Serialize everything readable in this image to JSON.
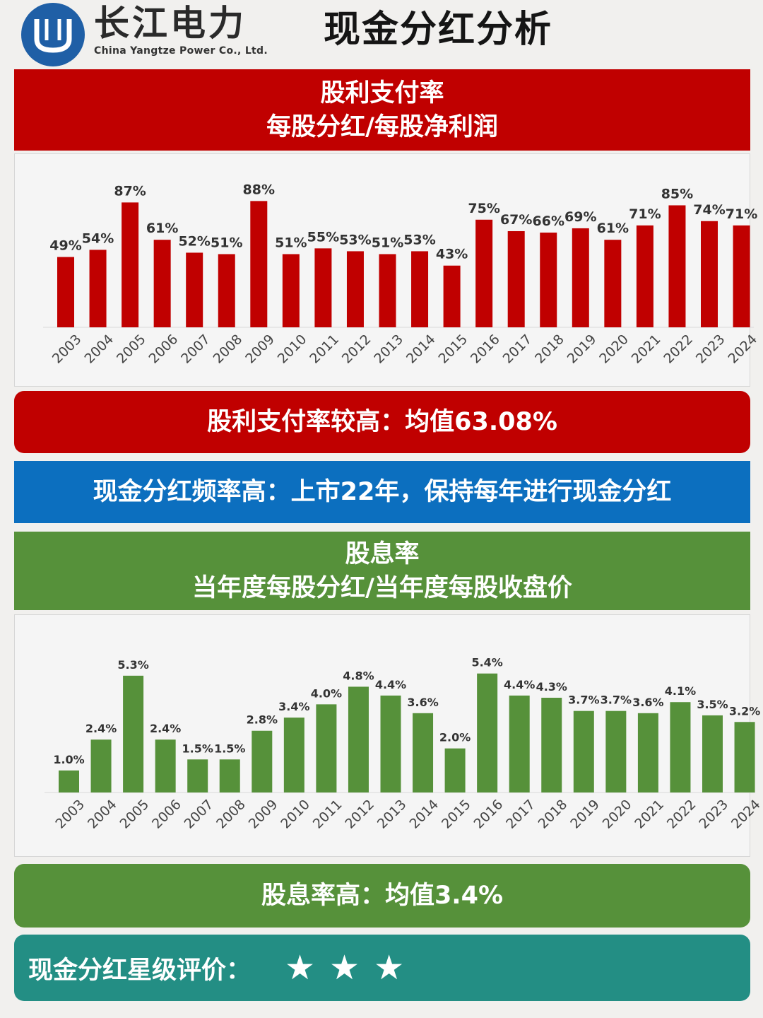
{
  "header": {
    "company_cn": "长江电力",
    "company_en": "China Yangtze Power Co., Ltd.",
    "title": "现金分红分析"
  },
  "payout_band": {
    "line1": "股利支付率",
    "line2": "每股分红/每股净利润",
    "color": "#c00000"
  },
  "payout_summary": "股利支付率较高：均值63.08%",
  "frequency_band": "现金分红频率高：上市22年，保持每年进行现金分红",
  "yield_band": {
    "line1": "股息率",
    "line2": "当年度每股分红/当年度每股收盘价",
    "color": "#56913a"
  },
  "yield_summary": "股息率高：均值3.4%",
  "rating": {
    "label": "现金分红星级评价：",
    "stars": 3,
    "icon": "star-icon"
  },
  "chart_data": [
    {
      "type": "bar",
      "title": "",
      "xlabel": "",
      "ylabel": "",
      "ylim": [
        0,
        100
      ],
      "grid": false,
      "color": "#c00000",
      "categories": [
        "2003",
        "2004",
        "2005",
        "2006",
        "2007",
        "2008",
        "2009",
        "2010",
        "2011",
        "2012",
        "2013",
        "2014",
        "2015",
        "2016",
        "2017",
        "2018",
        "2019",
        "2020",
        "2021",
        "2022",
        "2023",
        "2024"
      ],
      "values": [
        49,
        54,
        87,
        61,
        52,
        51,
        88,
        51,
        55,
        53,
        51,
        53,
        43,
        75,
        67,
        66,
        69,
        61,
        71,
        85,
        74,
        71
      ],
      "labels": [
        "49%",
        "54%",
        "87%",
        "61%",
        "52%",
        "51%",
        "88%",
        "51%",
        "55%",
        "53%",
        "51%",
        "53%",
        "43%",
        "75%",
        "67%",
        "66%",
        "69%",
        "61%",
        "71%",
        "85%",
        "74%",
        "71%"
      ]
    },
    {
      "type": "bar",
      "title": "",
      "xlabel": "",
      "ylabel": "",
      "ylim": [
        0,
        6
      ],
      "grid": false,
      "color": "#56913a",
      "categories": [
        "2003",
        "2004",
        "2005",
        "2006",
        "2007",
        "2008",
        "2009",
        "2010",
        "2011",
        "2012",
        "2013",
        "2014",
        "2015",
        "2016",
        "2017",
        "2018",
        "2019",
        "2020",
        "2021",
        "2022",
        "2023",
        "2024"
      ],
      "values": [
        1.0,
        2.4,
        5.3,
        2.4,
        1.5,
        1.5,
        2.8,
        3.4,
        4.0,
        4.8,
        4.4,
        3.6,
        2.0,
        5.4,
        4.4,
        4.3,
        3.7,
        3.7,
        3.6,
        4.1,
        3.5,
        3.2
      ],
      "labels": [
        "1.0%",
        "2.4%",
        "5.3%",
        "2.4%",
        "1.5%",
        "1.5%",
        "2.8%",
        "3.4%",
        "4.0%",
        "4.8%",
        "4.4%",
        "3.6%",
        "2.0%",
        "5.4%",
        "4.4%",
        "4.3%",
        "3.7%",
        "3.7%",
        "3.6%",
        "4.1%",
        "3.5%",
        "3.2%"
      ]
    }
  ]
}
